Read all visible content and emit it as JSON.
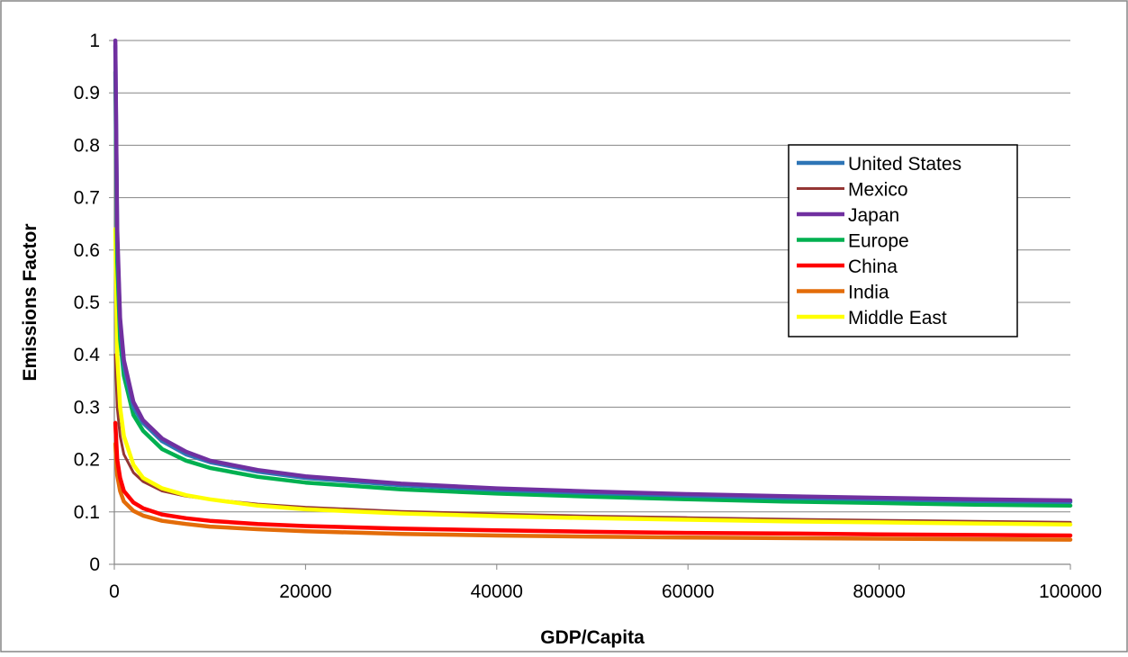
{
  "chart_data": {
    "type": "line",
    "title": "",
    "xlabel": "GDP/Capita",
    "ylabel": "Emissions Factor",
    "xlim": [
      0,
      100000
    ],
    "ylim": [
      0,
      1
    ],
    "x_ticks": [
      "0",
      "20000",
      "40000",
      "60000",
      "80000",
      "100000"
    ],
    "y_ticks": [
      "0",
      "0.1",
      "0.2",
      "0.3",
      "0.4",
      "0.5",
      "0.6",
      "0.7",
      "0.8",
      "0.9",
      "1"
    ],
    "grid": "horizontal",
    "legend_position": "top-right",
    "x": [
      100,
      300,
      600,
      1000,
      2000,
      3000,
      5000,
      7500,
      10000,
      15000,
      20000,
      30000,
      40000,
      50000,
      60000,
      70000,
      80000,
      90000,
      100000
    ],
    "series": [
      {
        "name": "United States",
        "color": "#2E75B6",
        "values": [
          0.99,
          0.62,
          0.46,
          0.38,
          0.3,
          0.27,
          0.235,
          0.21,
          0.195,
          0.177,
          0.165,
          0.151,
          0.142,
          0.136,
          0.131,
          0.127,
          0.124,
          0.121,
          0.119
        ]
      },
      {
        "name": "Mexico",
        "color": "#943634",
        "values": [
          0.4,
          0.3,
          0.245,
          0.21,
          0.175,
          0.158,
          0.14,
          0.13,
          0.124,
          0.115,
          0.109,
          0.101,
          0.096,
          0.092,
          0.089,
          0.086,
          0.084,
          0.082,
          0.08
        ]
      },
      {
        "name": "Japan",
        "color": "#7030A0",
        "values": [
          1.0,
          0.64,
          0.47,
          0.39,
          0.31,
          0.275,
          0.24,
          0.215,
          0.198,
          0.18,
          0.168,
          0.154,
          0.145,
          0.139,
          0.134,
          0.13,
          0.127,
          0.124,
          0.122
        ]
      },
      {
        "name": "Europe",
        "color": "#00B050",
        "values": [
          0.94,
          0.58,
          0.43,
          0.36,
          0.285,
          0.255,
          0.22,
          0.198,
          0.184,
          0.167,
          0.156,
          0.143,
          0.135,
          0.129,
          0.124,
          0.12,
          0.117,
          0.114,
          0.112
        ]
      },
      {
        "name": "China",
        "color": "#FF0000",
        "values": [
          0.27,
          0.2,
          0.165,
          0.14,
          0.118,
          0.107,
          0.095,
          0.088,
          0.083,
          0.077,
          0.073,
          0.068,
          0.065,
          0.062,
          0.06,
          0.059,
          0.057,
          0.056,
          0.055
        ]
      },
      {
        "name": "India",
        "color": "#E36C09",
        "values": [
          0.23,
          0.17,
          0.14,
          0.12,
          0.102,
          0.093,
          0.083,
          0.077,
          0.072,
          0.067,
          0.063,
          0.058,
          0.055,
          0.053,
          0.051,
          0.05,
          0.049,
          0.048,
          0.047
        ]
      },
      {
        "name": "Middle East",
        "color": "#FFFF00",
        "values": [
          0.64,
          0.4,
          0.3,
          0.245,
          0.19,
          0.165,
          0.145,
          0.132,
          0.124,
          0.112,
          0.105,
          0.097,
          0.092,
          0.088,
          0.085,
          0.082,
          0.08,
          0.078,
          0.076
        ]
      }
    ]
  }
}
